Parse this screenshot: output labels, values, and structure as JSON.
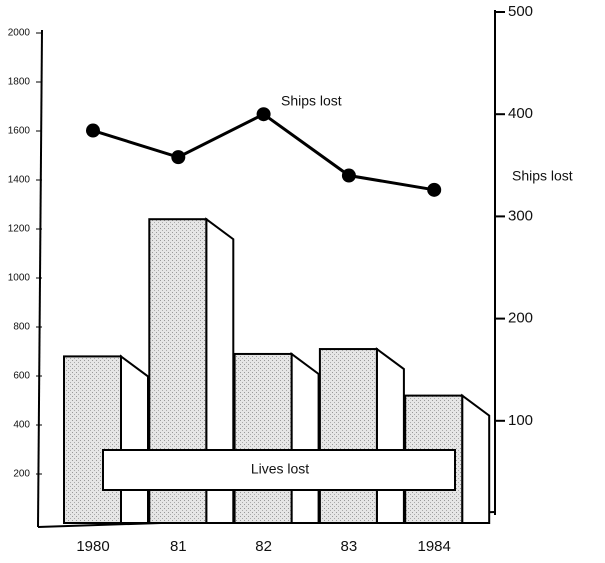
{
  "chart_data": {
    "type": "bar",
    "categories": [
      "1980",
      "81",
      "82",
      "83",
      "1984"
    ],
    "series": [
      {
        "name": "Lives lost",
        "type": "bar",
        "color": "#d4d4d4",
        "values": [
          680,
          1240,
          690,
          710,
          520
        ]
      },
      {
        "name": "Ships lost",
        "type": "line",
        "axis": "y2",
        "color": "#000000",
        "values": [
          384,
          358,
          400,
          340,
          326
        ]
      }
    ],
    "ylim": [
      0,
      2000
    ],
    "yticks": [
      200,
      400,
      600,
      800,
      1000,
      1200,
      1400,
      1600,
      1800,
      2000
    ],
    "y2lim": [
      0,
      500
    ],
    "y2ticks": [
      100,
      200,
      300,
      400,
      500
    ],
    "y2label": "Ships lost"
  }
}
